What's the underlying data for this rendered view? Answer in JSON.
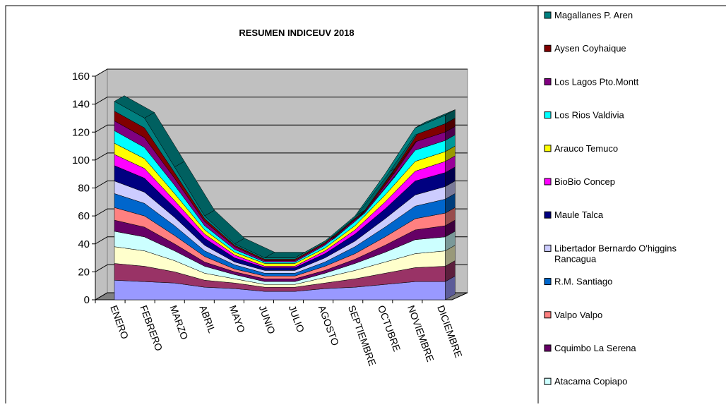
{
  "chart_data": {
    "type": "area3d",
    "stacked": true,
    "title": "RESUMEN INDICEUV 2018",
    "categories": [
      "ENERO",
      "FEBRERO",
      "MARZO",
      "ABRIL",
      "MAYO",
      "JUNIO",
      "JULIO",
      "AGOSTO",
      "SEPTIEMBRE",
      "OCTUBRE",
      "NOVIEMBRE",
      "DICIEMBRE"
    ],
    "ylim": [
      0,
      160
    ],
    "yticks": [
      0,
      20,
      40,
      60,
      80,
      100,
      120,
      140,
      160
    ],
    "grid": true,
    "series": [
      {
        "name": null,
        "color": "#9999ff",
        "values": [
          14,
          13,
          12,
          9,
          8,
          6,
          6,
          8,
          9,
          11,
          13,
          13
        ]
      },
      {
        "name": null,
        "color": "#993366",
        "values": [
          12,
          11,
          8,
          5,
          4,
          3,
          3,
          4,
          6,
          8,
          10,
          11
        ]
      },
      {
        "name": null,
        "color": "#ffffcc",
        "values": [
          12,
          11,
          8,
          5,
          3,
          2,
          2,
          4,
          6,
          8,
          10,
          11
        ]
      },
      {
        "name": "Atacama Copiapo",
        "color": "#ccffff",
        "values": [
          11,
          10,
          7,
          5,
          3,
          2,
          2,
          3,
          5,
          7,
          10,
          10
        ]
      },
      {
        "name": "Cquimbo La Serena",
        "color": "#660066",
        "values": [
          8,
          7,
          5,
          3,
          2,
          2,
          2,
          2,
          3,
          5,
          7,
          8
        ]
      },
      {
        "name": "Valpo Valpo",
        "color": "#ff8080",
        "values": [
          9,
          8,
          6,
          4,
          2,
          2,
          2,
          3,
          4,
          6,
          8,
          9
        ]
      },
      {
        "name": "R.M. Santiago",
        "color": "#0066cc",
        "values": [
          10,
          9,
          7,
          4,
          3,
          2,
          2,
          3,
          5,
          7,
          9,
          10
        ]
      },
      {
        "name": "Libertador Bernardo O'higgins Rancagua",
        "color": "#ccccff",
        "values": [
          9,
          8,
          6,
          4,
          2,
          2,
          2,
          3,
          4,
          6,
          8,
          9
        ]
      },
      {
        "name": "Maule Talca",
        "color": "#000080",
        "values": [
          11,
          10,
          7,
          5,
          3,
          2,
          2,
          3,
          5,
          7,
          10,
          10
        ]
      },
      {
        "name": "BioBio Concep",
        "color": "#ff00ff",
        "values": [
          8,
          7,
          5,
          3,
          2,
          1,
          1,
          2,
          3,
          5,
          7,
          8
        ]
      },
      {
        "name": "Arauco Temuco",
        "color": "#ffff00",
        "values": [
          8,
          7,
          5,
          3,
          2,
          2,
          2,
          2,
          3,
          5,
          7,
          7
        ]
      },
      {
        "name": "Los Rios Valdivia",
        "color": "#00ffff",
        "values": [
          9,
          8,
          6,
          3,
          2,
          1,
          1,
          2,
          3,
          5,
          8,
          8
        ]
      },
      {
        "name": "Los Lagos Pto.Montt",
        "color": "#800080",
        "values": [
          7,
          7,
          5,
          3,
          2,
          1,
          1,
          1,
          2,
          4,
          6,
          6
        ]
      },
      {
        "name": "Aysen Coyhaique",
        "color": "#800000",
        "values": [
          7,
          7,
          4,
          2,
          1,
          1,
          1,
          1,
          1,
          3,
          5,
          6
        ]
      },
      {
        "name": "Magallanes P. Aren",
        "color": "#008080",
        "values": [
          7,
          7,
          4,
          2,
          1,
          1,
          1,
          1,
          1,
          3,
          5,
          6
        ]
      }
    ]
  }
}
